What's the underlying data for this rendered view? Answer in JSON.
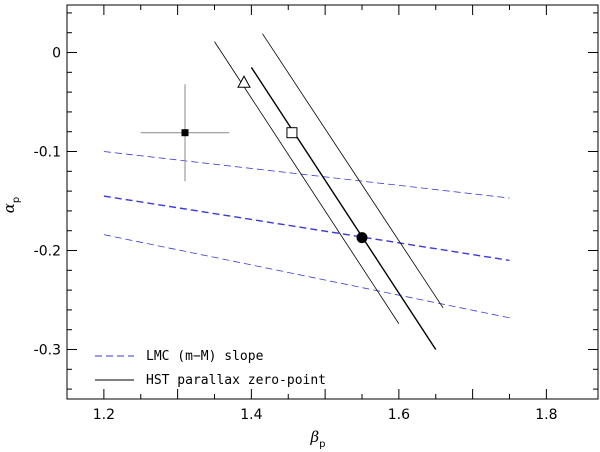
{
  "chart_data": {
    "type": "line",
    "title": "",
    "xlabel": {
      "main": "β",
      "sub": "p"
    },
    "ylabel": {
      "main": "α",
      "sub": "p"
    },
    "xlim": [
      1.15,
      1.87
    ],
    "ylim": [
      -0.35,
      0.048
    ],
    "xticks": [
      1.2,
      1.4,
      1.6,
      1.8
    ],
    "xtick_labels": [
      "1.2",
      "1.4",
      "1.6",
      "1.8"
    ],
    "yticks": [
      0,
      -0.1,
      -0.2,
      -0.3
    ],
    "ytick_labels": [
      "0",
      "-0.1",
      "-0.2",
      "-0.3"
    ],
    "grid": false,
    "legend_position": "bottom-left",
    "colors": {
      "lmc": "#3a3ad8",
      "hst": "#000000",
      "errorbar": "#888888"
    },
    "legend": [
      {
        "label": "LMC (m−M) slope",
        "style": "dashed",
        "color": "#3a3ad8"
      },
      {
        "label": "HST parallax zero-point",
        "style": "solid",
        "color": "#000000"
      }
    ],
    "series": [
      {
        "name": "LMC (m−M) slope",
        "group": "lmc",
        "style": "dashed",
        "emphasis": "strong",
        "x": [
          1.2,
          1.75
        ],
        "y": [
          -0.145,
          -0.21
        ]
      },
      {
        "group": "lmc",
        "style": "dashed",
        "emphasis": "bound",
        "x": [
          1.2,
          1.75
        ],
        "y": [
          -0.1,
          -0.147
        ]
      },
      {
        "group": "lmc",
        "style": "dashed",
        "emphasis": "bound",
        "x": [
          1.2,
          1.75
        ],
        "y": [
          -0.184,
          -0.268
        ]
      },
      {
        "name": "HST parallax zero-point",
        "group": "hst",
        "style": "solid",
        "emphasis": "strong",
        "x": [
          1.4,
          1.65
        ],
        "y": [
          -0.015,
          -0.3
        ]
      },
      {
        "group": "hst",
        "style": "solid",
        "emphasis": "bound",
        "x": [
          1.35,
          1.6
        ],
        "y": [
          0.011,
          -0.274
        ]
      },
      {
        "group": "hst",
        "style": "solid",
        "emphasis": "bound",
        "x": [
          1.415,
          1.66
        ],
        "y": [
          0.019,
          -0.258
        ]
      }
    ],
    "points": [
      {
        "marker": "filled-square",
        "x": 1.31,
        "y": -0.081,
        "xerr": 0.06,
        "yerr": 0.049
      },
      {
        "marker": "open-triangle",
        "x": 1.39,
        "y": -0.03
      },
      {
        "marker": "open-square",
        "x": 1.455,
        "y": -0.081
      },
      {
        "marker": "filled-circle",
        "x": 1.55,
        "y": -0.187
      }
    ]
  }
}
